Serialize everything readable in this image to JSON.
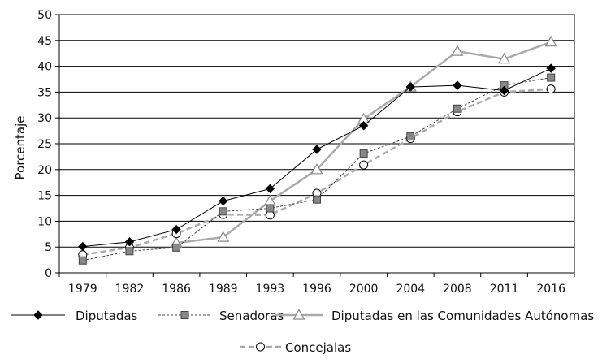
{
  "chart_data": {
    "type": "line",
    "title": "",
    "xlabel": "",
    "ylabel": "Porcentaje",
    "x": [
      "1979",
      "1982",
      "1986",
      "1989",
      "1993",
      "1996",
      "2000",
      "2004",
      "2008",
      "2011",
      "2016"
    ],
    "ylim": [
      0,
      50
    ],
    "yticks": [
      0,
      5,
      10,
      15,
      20,
      25,
      30,
      35,
      40,
      45,
      50
    ],
    "grid": "horizontal",
    "legend_position": "bottom",
    "series": [
      {
        "name": "Diputadas",
        "values": [
          5.1,
          6.0,
          8.4,
          13.9,
          16.3,
          23.9,
          28.5,
          36.0,
          36.3,
          35.3,
          39.6
        ],
        "color": "#000000",
        "style": "solid",
        "marker": "diamond"
      },
      {
        "name": "Senadoras",
        "values": [
          2.4,
          4.2,
          4.9,
          11.9,
          12.5,
          14.2,
          23.1,
          26.4,
          31.8,
          36.3,
          37.8
        ],
        "color": "#444444",
        "style": "dotted",
        "marker": "square"
      },
      {
        "name": "Diputadas en las Comunidades Autónomas",
        "values": [
          null,
          null,
          5.8,
          6.9,
          13.9,
          20.0,
          29.8,
          36.0,
          42.9,
          41.4,
          44.7
        ],
        "color": "#aaaaaa",
        "style": "thick",
        "marker": "triangle"
      },
      {
        "name": "Concejalas",
        "values": [
          3.5,
          4.9,
          7.6,
          11.3,
          11.2,
          15.4,
          20.9,
          26.0,
          31.2,
          35.0,
          35.6
        ],
        "color": "#aaaaaa",
        "style": "dashed",
        "marker": "circle"
      }
    ]
  }
}
